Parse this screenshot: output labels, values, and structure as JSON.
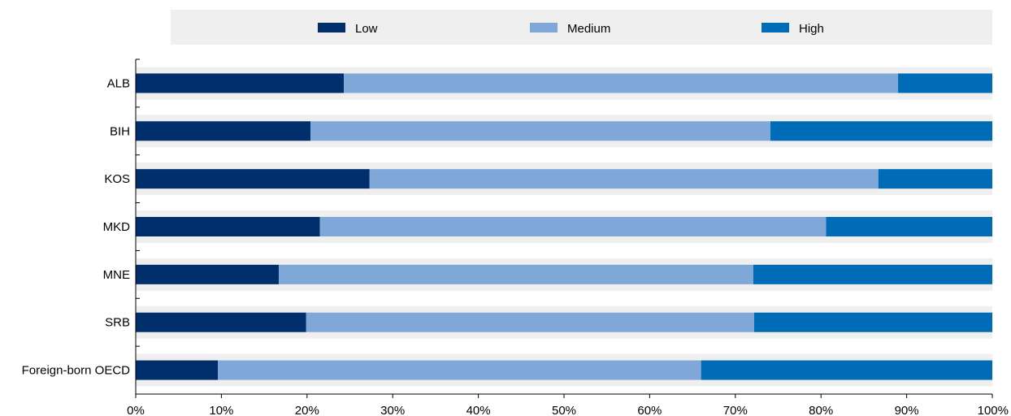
{
  "colors": {
    "low": "#002F6C",
    "medium": "#7FA8D9",
    "high": "#006BB6",
    "band": "#EFEFEF",
    "legend_bg": "#EFEFEF"
  },
  "chart_data": {
    "type": "bar",
    "orientation": "horizontal",
    "stacked": true,
    "categories": [
      "ALB",
      "BIH",
      "KOS",
      "MKD",
      "MNE",
      "SRB",
      "Foreign-born OECD"
    ],
    "series": [
      {
        "name": "Low",
        "values": [
          24.3,
          20.4,
          27.3,
          21.5,
          16.7,
          19.9,
          9.6
        ]
      },
      {
        "name": "Medium",
        "values": [
          64.7,
          53.7,
          59.4,
          59.1,
          55.4,
          52.3,
          56.4
        ]
      },
      {
        "name": "High",
        "values": [
          11.0,
          25.9,
          13.3,
          19.4,
          27.9,
          27.8,
          34.0
        ]
      }
    ],
    "xlim": [
      0,
      100
    ],
    "xticks": [
      "0%",
      "10%",
      "20%",
      "30%",
      "40%",
      "50%",
      "60%",
      "70%",
      "80%",
      "90%",
      "100%"
    ],
    "legend_position": "top",
    "grid": false
  }
}
